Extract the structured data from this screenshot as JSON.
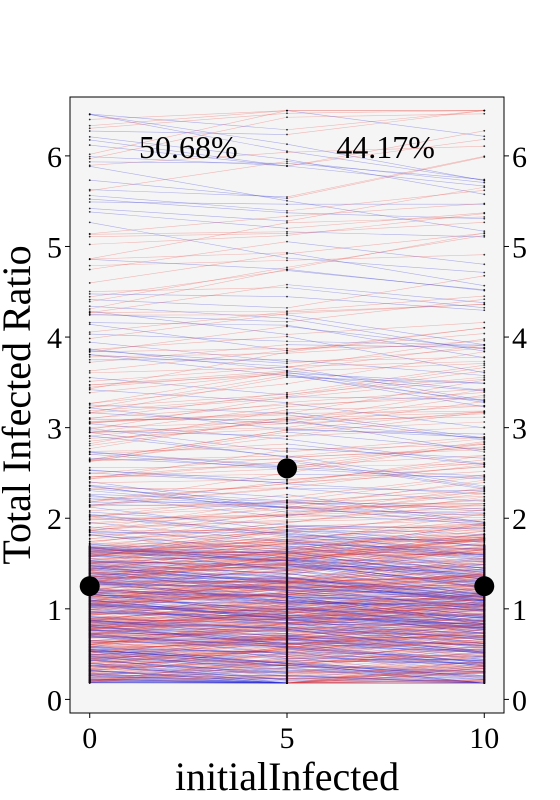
{
  "chart_data": {
    "type": "line",
    "title": "",
    "xlabel": "initialInfected",
    "ylabel": "Total Infected Ratio",
    "x_ticks": [
      0,
      5,
      10
    ],
    "x_tick_labels": [
      "0",
      "5",
      "10"
    ],
    "xlim": [
      -0.5,
      10.5
    ],
    "y_ticks": [
      0,
      1,
      2,
      3,
      4,
      5,
      6
    ],
    "y_tick_labels": [
      "0",
      "1",
      "2",
      "3",
      "4",
      "5",
      "6"
    ],
    "ylim": [
      -0.15,
      6.65
    ],
    "grid": false,
    "right_axis_ticks": true,
    "background": "#f5f5f5",
    "series": [
      {
        "x": [
          0,
          5,
          10
        ],
        "values": [
          1.25,
          2.55,
          1.25
        ],
        "marker": "large-dot"
      }
    ],
    "annotations": [
      {
        "text": "50.68%",
        "x": 2.5,
        "y": 6.1
      },
      {
        "text": "44.17%",
        "x": 7.5,
        "y": 6.1
      }
    ],
    "segment_colors": {
      "increase": "#e8413c",
      "decrease": "#2b2bd6"
    },
    "point_color": "#000000",
    "value_range": [
      0.18,
      6.5
    ]
  }
}
